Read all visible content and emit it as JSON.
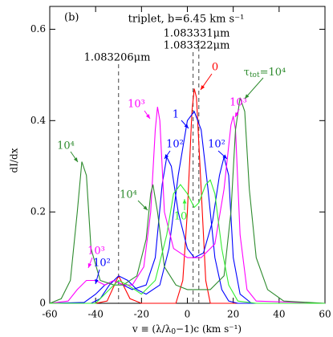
{
  "chart_data": {
    "type": "line",
    "title": "triplet, b=6.45 km s⁻¹",
    "panel": "(b)",
    "xlabel": {
      "parts": [
        "v ≡ (λ/λ",
        "0",
        "−1)c (km s⁻¹)"
      ]
    },
    "ylabel": "dI/dx",
    "xlim": [
      -60,
      60
    ],
    "ylim": [
      0,
      0.65
    ],
    "xticks": [
      -60,
      -40,
      -20,
      0,
      20,
      40,
      60
    ],
    "yticks": [
      0,
      0.2,
      0.4,
      0.6
    ],
    "vlines": [
      {
        "value": -30,
        "label": "1.083206μm"
      },
      {
        "value": 2.5,
        "label": "1.083322μm"
      },
      {
        "value": 5,
        "label": "1.083331μm"
      }
    ],
    "series": [
      {
        "color": "#ff0000",
        "x": [
          -60,
          -40,
          -35,
          -30,
          -25,
          -20,
          -5,
          -2,
          0,
          2,
          3,
          4,
          6,
          8,
          10,
          60
        ],
        "values": [
          0,
          0,
          0.005,
          0.06,
          0.01,
          0,
          0,
          0.05,
          0.2,
          0.42,
          0.47,
          0.45,
          0.25,
          0.05,
          0,
          0
        ]
      },
      {
        "color": "#0000ff",
        "x": [
          -60,
          -42,
          -38,
          -34,
          -30,
          -26,
          -22,
          -18,
          -12,
          -8,
          -4,
          0,
          3,
          6,
          9,
          12,
          15,
          18,
          22,
          60
        ],
        "values": [
          0,
          0,
          0.01,
          0.04,
          0.06,
          0.05,
          0.03,
          0.02,
          0.04,
          0.12,
          0.28,
          0.4,
          0.42,
          0.38,
          0.25,
          0.1,
          0.03,
          0.005,
          0,
          0
        ]
      },
      {
        "color": "#0000ff",
        "x": [
          -60,
          -45,
          -40,
          -36,
          -32,
          -28,
          -24,
          -18,
          -14,
          -11,
          -9,
          -7,
          -4,
          0,
          3,
          7,
          11,
          14,
          16,
          18,
          20,
          23,
          28,
          60
        ],
        "values": [
          0,
          0.002,
          0.02,
          0.04,
          0.05,
          0.04,
          0.03,
          0.04,
          0.1,
          0.26,
          0.32,
          0.3,
          0.2,
          0.12,
          0.1,
          0.11,
          0.18,
          0.28,
          0.32,
          0.28,
          0.1,
          0.02,
          0,
          0
        ]
      },
      {
        "color": "#ff00ff",
        "x": [
          -60,
          -52,
          -48,
          -44,
          -40,
          -36,
          -32,
          -28,
          -24,
          -19,
          -16,
          -14,
          -13,
          -12,
          -10,
          -6,
          0,
          6,
          12,
          16,
          19,
          20,
          21,
          23,
          26,
          30,
          60
        ],
        "values": [
          0,
          0.005,
          0.03,
          0.05,
          0.05,
          0.04,
          0.05,
          0.04,
          0.04,
          0.08,
          0.2,
          0.38,
          0.43,
          0.4,
          0.2,
          0.12,
          0.1,
          0.1,
          0.13,
          0.25,
          0.39,
          0.41,
          0.38,
          0.15,
          0.03,
          0.005,
          0
        ]
      },
      {
        "color": "#2e8b2e",
        "x": [
          -60,
          -55,
          -51,
          -48,
          -46,
          -44,
          -42,
          -38,
          -32,
          -28,
          -22,
          -18,
          -16,
          -15,
          -13,
          -10,
          -5,
          0,
          10,
          16,
          19,
          21,
          23,
          25,
          27,
          30,
          35,
          42,
          60
        ],
        "values": [
          0,
          0.01,
          0.05,
          0.2,
          0.31,
          0.28,
          0.12,
          0.05,
          0.04,
          0.04,
          0.06,
          0.14,
          0.24,
          0.26,
          0.2,
          0.08,
          0.04,
          0.03,
          0.03,
          0.06,
          0.2,
          0.38,
          0.45,
          0.42,
          0.25,
          0.1,
          0.03,
          0.005,
          0
        ]
      },
      {
        "color": "#33ee33",
        "x": [
          -60,
          -40,
          -34,
          -30,
          -26,
          -20,
          -14,
          -9,
          -6,
          -3,
          0,
          3,
          5,
          8,
          10,
          12,
          15,
          18,
          22,
          30,
          60
        ],
        "values": [
          0,
          0,
          0.03,
          0.05,
          0.04,
          0.02,
          0.05,
          0.15,
          0.24,
          0.26,
          0.24,
          0.21,
          0.22,
          0.26,
          0.27,
          0.24,
          0.12,
          0.04,
          0.005,
          0,
          0
        ]
      }
    ],
    "annotations": [
      {
        "text": "0",
        "color": "#ff0000"
      },
      {
        "text": "1",
        "color": "#0000ff"
      },
      {
        "text": "10²",
        "color": "#0000ff"
      },
      {
        "text": "10²",
        "color": "#0000ff"
      },
      {
        "text": "10³",
        "color": "#ff00ff"
      },
      {
        "text": "10³",
        "color": "#ff00ff"
      },
      {
        "parts": [
          "τ",
          "tot",
          "=10⁴"
        ],
        "color": "#2e8b2e"
      },
      {
        "text": "10⁴",
        "color": "#2e8b2e"
      },
      {
        "text": "10⁴",
        "color": "#2e8b2e"
      },
      {
        "text": "10",
        "color": "#33ee33"
      },
      {
        "text": "10³",
        "color": "#ff00ff"
      },
      {
        "text": "10²",
        "color": "#0000ff"
      }
    ]
  }
}
